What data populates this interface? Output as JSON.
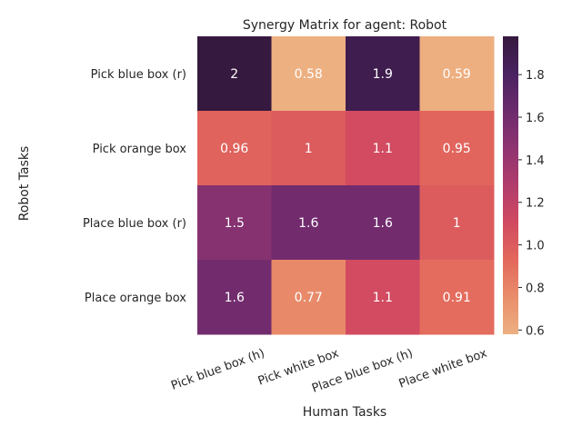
{
  "chart_data": {
    "type": "heatmap",
    "title": "Synergy Matrix for agent: Robot",
    "xlabel": "Human Tasks",
    "ylabel": "Robot Tasks",
    "x_categories": [
      "Pick blue box (h)",
      "Pick white box",
      "Place blue box (h)",
      "Place white box"
    ],
    "y_categories": [
      "Pick blue box (r)",
      "Pick orange box",
      "Place blue box (r)",
      "Place orange box"
    ],
    "values": [
      [
        1.98,
        0.58,
        1.9,
        0.59
      ],
      [
        0.96,
        1.0,
        1.1,
        0.95
      ],
      [
        1.5,
        1.6,
        1.6,
        1.0
      ],
      [
        1.6,
        0.77,
        1.1,
        0.91
      ]
    ],
    "labels": [
      [
        "2",
        "0.58",
        "1.9",
        "0.59"
      ],
      [
        "0.96",
        "1",
        "1.1",
        "0.95"
      ],
      [
        "1.5",
        "1.6",
        "1.6",
        "1"
      ],
      [
        "1.6",
        "0.77",
        "1.1",
        "0.91"
      ]
    ],
    "colorbar": {
      "range": [
        0.58,
        1.98
      ],
      "ticks": [
        0.6,
        0.8,
        1.0,
        1.2,
        1.4,
        1.6,
        1.8
      ],
      "tick_labels": [
        "0.6",
        "0.8",
        "1.0",
        "1.2",
        "1.4",
        "1.6",
        "1.8"
      ],
      "colormap": [
        "#edb081",
        "#e98d6b",
        "#e3685c",
        "#d14a61",
        "#b13c6c",
        "#8f3371",
        "#6c2b6d",
        "#4a2261",
        "#35193e"
      ]
    }
  }
}
